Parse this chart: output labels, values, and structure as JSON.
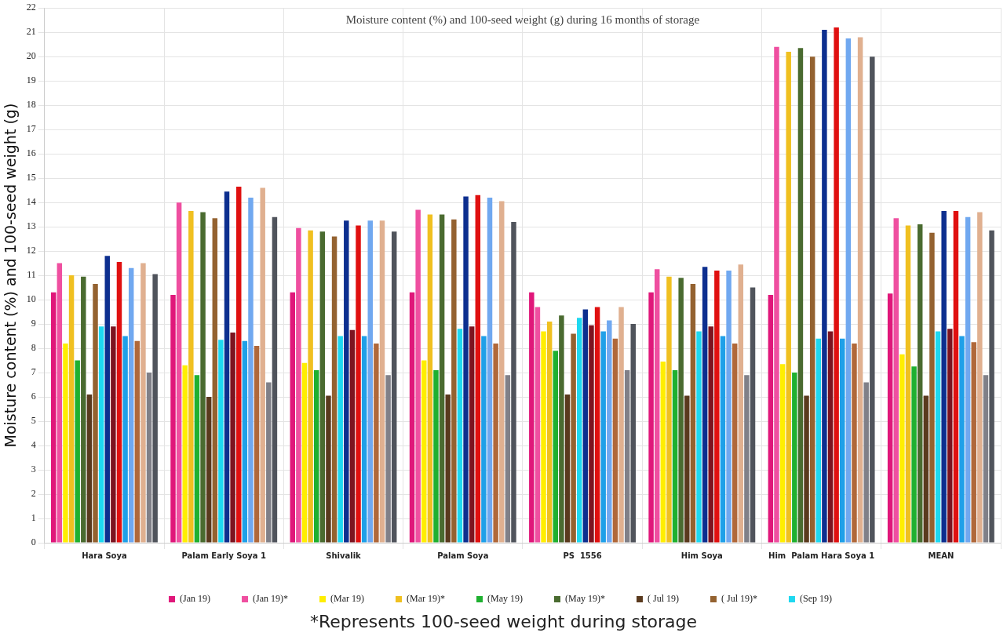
{
  "chart_data": {
    "type": "bar",
    "title": "Moisture content (%) and 100-seed weight (g) during 16 months of storage",
    "ylabel": "Moisture content (%) and 100-seed weight (g)",
    "categories": [
      "Hara Soya",
      "Palam Early Soya 1",
      "Shivalik",
      "Palam Soya",
      "PS  1556",
      "Him Soya",
      "Him  Palam Hara Soya 1",
      "MEAN"
    ],
    "series": [
      {
        "name": "(Jan 19)",
        "color": "#e0177a",
        "values": [
          10.3,
          10.2,
          10.3,
          10.3,
          10.3,
          10.3,
          10.2,
          10.25
        ]
      },
      {
        "name": "(Jan 19)*",
        "color": "#ef4fa0",
        "values": [
          11.5,
          14.0,
          12.95,
          13.7,
          9.7,
          11.25,
          20.4,
          13.35
        ]
      },
      {
        "name": "(Mar 19)",
        "color": "#ffee00",
        "values": [
          8.2,
          7.3,
          7.4,
          7.5,
          8.7,
          7.45,
          7.35,
          7.75
        ]
      },
      {
        "name": "(Mar 19)*",
        "color": "#f0c020",
        "values": [
          11.0,
          13.65,
          12.85,
          13.5,
          9.1,
          10.95,
          20.2,
          13.05
        ]
      },
      {
        "name": "(May 19)",
        "color": "#1fb030",
        "values": [
          7.5,
          6.9,
          7.1,
          7.1,
          7.9,
          7.1,
          7.0,
          7.25
        ]
      },
      {
        "name": "(May 19)*",
        "color": "#4a6b30",
        "values": [
          10.95,
          13.6,
          12.8,
          13.5,
          9.35,
          10.9,
          20.35,
          13.1
        ]
      },
      {
        "name": "( Jul 19)",
        "color": "#5a3a1e",
        "values": [
          6.1,
          6.0,
          6.05,
          6.1,
          6.1,
          6.05,
          6.05,
          6.05
        ]
      },
      {
        "name": "( Jul 19)*",
        "color": "#946230",
        "values": [
          10.65,
          13.35,
          12.6,
          13.3,
          8.6,
          10.65,
          20.0,
          12.75
        ]
      },
      {
        "name": "(Sep 19)",
        "color": "#1ed8f0",
        "values": [
          8.9,
          8.35,
          8.5,
          8.8,
          9.25,
          8.7,
          8.4,
          8.7
        ]
      },
      {
        "color": "#0d2f8f",
        "values": [
          11.8,
          14.45,
          13.25,
          14.25,
          9.6,
          11.35,
          21.1,
          13.65
        ]
      },
      {
        "color": "#7d1420",
        "values": [
          8.9,
          8.65,
          8.75,
          8.9,
          8.95,
          8.9,
          8.7,
          8.8
        ]
      },
      {
        "color": "#e01010",
        "values": [
          11.55,
          14.65,
          13.05,
          14.3,
          9.7,
          11.2,
          21.2,
          13.65
        ]
      },
      {
        "color": "#1fa0e8",
        "values": [
          8.5,
          8.3,
          8.5,
          8.5,
          8.7,
          8.5,
          8.4,
          8.5
        ]
      },
      {
        "color": "#70a8f0",
        "values": [
          11.3,
          14.2,
          13.25,
          14.2,
          9.15,
          11.2,
          20.75,
          13.4
        ]
      },
      {
        "color": "#b0683a",
        "values": [
          8.3,
          8.1,
          8.2,
          8.2,
          8.4,
          8.2,
          8.2,
          8.25
        ]
      },
      {
        "color": "#e0b090",
        "values": [
          11.5,
          14.6,
          13.25,
          14.05,
          9.7,
          11.45,
          20.8,
          13.6
        ]
      },
      {
        "color": "#808088",
        "values": [
          7.0,
          6.6,
          6.9,
          6.9,
          7.1,
          6.9,
          6.6,
          6.9
        ]
      },
      {
        "color": "#50545c",
        "values": [
          11.05,
          13.4,
          12.8,
          13.2,
          9.0,
          10.5,
          20.0,
          12.85
        ]
      }
    ],
    "ylim": [
      0,
      22
    ],
    "yticks": [
      0,
      1,
      2,
      3,
      4,
      5,
      6,
      7,
      8,
      9,
      10,
      11,
      12,
      13,
      14,
      15,
      16,
      17,
      18,
      19,
      20,
      21,
      22
    ],
    "grid": true,
    "legend": "bottom",
    "annotations": [
      "*Represents 100-seed weight during storage"
    ]
  }
}
